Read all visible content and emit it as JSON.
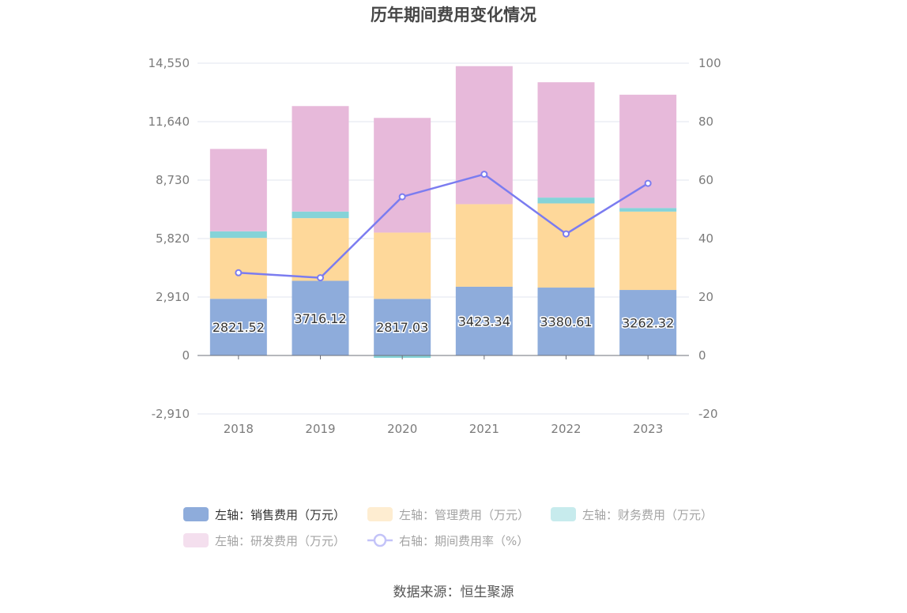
{
  "title": "历年期间费用变化情况",
  "source": "数据来源：恒生聚源",
  "colors": {
    "sales": "#8eacdb",
    "admin": "#fed89a",
    "finance": "#85d3d8",
    "rnd": "#e7b9da",
    "rate": "#7b7cf0",
    "grid": "#e2e6ef",
    "axis": "#6e7079"
  },
  "chart_data": {
    "type": "bar",
    "stacked": true,
    "categories": [
      "2018",
      "2019",
      "2020",
      "2021",
      "2022",
      "2023"
    ],
    "left_axis": {
      "min": -2910,
      "max": 14550,
      "ticks": [
        "14,550",
        "11,640",
        "8,730",
        "5,820",
        "2,910",
        "0",
        "-2,910"
      ]
    },
    "right_axis": {
      "min": -20,
      "max": 100,
      "ticks": [
        "100",
        "80",
        "60",
        "40",
        "20",
        "0",
        "-20"
      ]
    },
    "grid": true,
    "legend_position": "bottom",
    "series": [
      {
        "name": "左轴：销售费用（万元）",
        "key": "sales",
        "axis": "left",
        "type": "bar",
        "values": [
          2821.52,
          3716.12,
          2817.03,
          3423.34,
          3380.61,
          3262.32
        ],
        "labels": [
          "2821.52",
          "3716.12",
          "2817.03",
          "3423.34",
          "3380.61",
          "3262.32"
        ]
      },
      {
        "name": "左轴：管理费用（万元）",
        "key": "admin",
        "axis": "left",
        "type": "bar",
        "values": [
          3030,
          3120,
          3300,
          4110,
          4190,
          3900
        ]
      },
      {
        "name": "左轴：财务费用（万元）",
        "key": "finance",
        "axis": "left",
        "type": "bar",
        "values": [
          330,
          330,
          -120,
          0,
          290,
          180
        ]
      },
      {
        "name": "左轴：研发费用（万元）",
        "key": "rnd",
        "axis": "left",
        "type": "bar",
        "values": [
          4100,
          5250,
          5710,
          6870,
          5740,
          5640
        ]
      },
      {
        "name": "右轴：期间费用率（%）",
        "key": "rate",
        "axis": "right",
        "type": "line",
        "values": [
          28.3,
          26.6,
          54.3,
          62.0,
          41.6,
          58.9
        ]
      }
    ]
  }
}
